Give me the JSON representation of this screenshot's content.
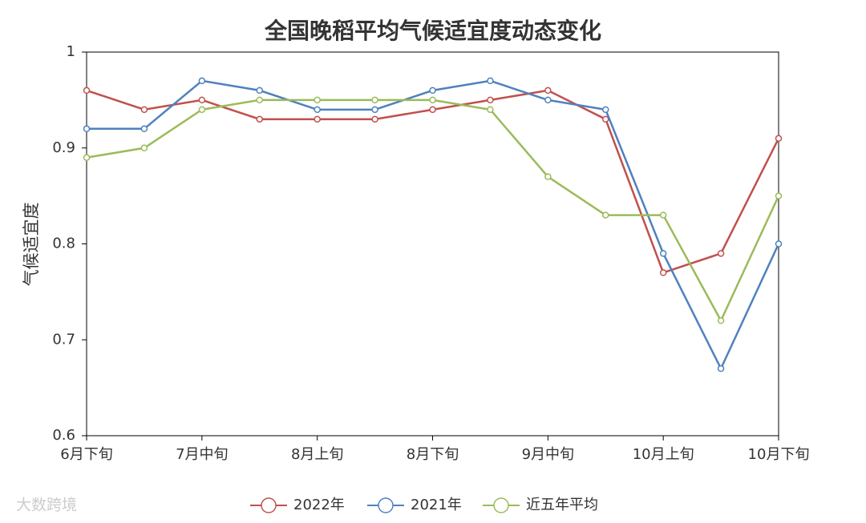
{
  "chart_data": {
    "type": "line",
    "title": "全国晚稻平均气候适宜度动态变化",
    "y_label": "气候适宜度",
    "categories": [
      "6月下旬",
      null,
      "7月中旬",
      null,
      "8月上旬",
      null,
      "8月下旬",
      null,
      "9月中旬",
      null,
      "10月上旬",
      null,
      "10月下旬"
    ],
    "series": [
      {
        "name": "2022年",
        "color": "#c0504d",
        "values": [
          0.96,
          0.94,
          0.95,
          0.93,
          0.93,
          0.93,
          0.94,
          0.95,
          0.96,
          0.93,
          0.77,
          0.79,
          0.91
        ]
      },
      {
        "name": "2021年",
        "color": "#4f81bd",
        "values": [
          0.92,
          0.92,
          0.97,
          0.96,
          0.94,
          0.94,
          0.96,
          0.97,
          0.95,
          0.94,
          0.79,
          0.67,
          0.8
        ]
      },
      {
        "name": "近五年平均",
        "color": "#9bbb59",
        "values": [
          0.89,
          0.9,
          0.94,
          0.95,
          0.95,
          0.95,
          0.95,
          0.94,
          0.87,
          0.83,
          0.83,
          0.72,
          0.85
        ]
      }
    ],
    "ylim": [
      0.6,
      1
    ],
    "yticks": [
      0.6,
      0.7,
      0.8,
      0.9,
      1
    ],
    "watermark": "大数跨境"
  }
}
